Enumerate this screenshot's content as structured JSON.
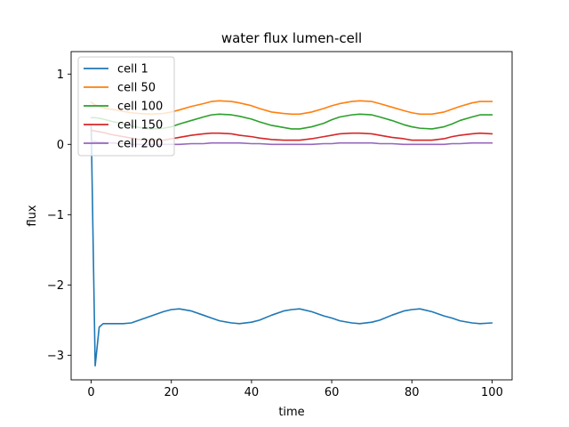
{
  "chart_data": {
    "type": "line",
    "title": "water flux lumen-cell",
    "xlabel": "time",
    "ylabel": "flux",
    "xlim": [
      -5,
      105
    ],
    "ylim": [
      -3.35,
      1.32
    ],
    "xticks": [
      0,
      20,
      40,
      60,
      80,
      100
    ],
    "xtick_labels": [
      "0",
      "20",
      "40",
      "60",
      "80",
      "100"
    ],
    "yticks": [
      -3,
      -2,
      -1,
      0,
      1
    ],
    "ytick_labels": [
      "−3",
      "−2",
      "−1",
      "0",
      "1"
    ],
    "grid": false,
    "legend_position": "upper-left",
    "x": [
      0,
      1,
      2,
      3,
      5,
      8,
      10,
      12,
      15,
      18,
      20,
      22,
      25,
      28,
      30,
      32,
      35,
      37,
      40,
      42,
      45,
      48,
      50,
      52,
      55,
      58,
      60,
      62,
      65,
      67,
      70,
      72,
      75,
      78,
      80,
      82,
      85,
      88,
      90,
      92,
      95,
      97,
      100
    ],
    "series": [
      {
        "name": "cell 1",
        "color": "#1f77b4",
        "values": [
          0.28,
          -3.15,
          -2.6,
          -2.55,
          -2.55,
          -2.55,
          -2.54,
          -2.5,
          -2.44,
          -2.38,
          -2.35,
          -2.34,
          -2.37,
          -2.43,
          -2.47,
          -2.51,
          -2.54,
          -2.55,
          -2.53,
          -2.5,
          -2.43,
          -2.37,
          -2.35,
          -2.34,
          -2.38,
          -2.44,
          -2.47,
          -2.51,
          -2.54,
          -2.55,
          -2.53,
          -2.5,
          -2.43,
          -2.37,
          -2.35,
          -2.34,
          -2.38,
          -2.44,
          -2.47,
          -2.51,
          -2.54,
          -2.55,
          -2.54
        ]
      },
      {
        "name": "cell 50",
        "color": "#ff7f0e",
        "values": [
          0.6,
          0.56,
          0.54,
          0.52,
          0.5,
          0.47,
          0.45,
          0.44,
          0.43,
          0.44,
          0.46,
          0.49,
          0.54,
          0.58,
          0.61,
          0.62,
          0.61,
          0.59,
          0.55,
          0.51,
          0.46,
          0.44,
          0.43,
          0.43,
          0.46,
          0.51,
          0.55,
          0.58,
          0.61,
          0.62,
          0.61,
          0.58,
          0.53,
          0.48,
          0.45,
          0.43,
          0.43,
          0.46,
          0.5,
          0.54,
          0.59,
          0.61,
          0.61
        ]
      },
      {
        "name": "cell 100",
        "color": "#2ca02c",
        "values": [
          0.38,
          0.38,
          0.37,
          0.36,
          0.33,
          0.29,
          0.26,
          0.24,
          0.22,
          0.23,
          0.25,
          0.29,
          0.34,
          0.39,
          0.42,
          0.43,
          0.42,
          0.4,
          0.36,
          0.32,
          0.27,
          0.24,
          0.22,
          0.22,
          0.25,
          0.3,
          0.35,
          0.39,
          0.42,
          0.43,
          0.42,
          0.39,
          0.34,
          0.28,
          0.25,
          0.23,
          0.22,
          0.25,
          0.29,
          0.34,
          0.39,
          0.42,
          0.42
        ]
      },
      {
        "name": "cell 150",
        "color": "#d62728",
        "values": [
          0.2,
          0.19,
          0.18,
          0.17,
          0.14,
          0.11,
          0.09,
          0.07,
          0.06,
          0.06,
          0.08,
          0.1,
          0.13,
          0.15,
          0.16,
          0.16,
          0.15,
          0.13,
          0.11,
          0.09,
          0.07,
          0.06,
          0.06,
          0.06,
          0.08,
          0.11,
          0.13,
          0.15,
          0.16,
          0.16,
          0.15,
          0.13,
          0.1,
          0.08,
          0.06,
          0.06,
          0.06,
          0.08,
          0.11,
          0.13,
          0.15,
          0.16,
          0.15
        ]
      },
      {
        "name": "cell 200",
        "color": "#9467bd",
        "values": [
          0.04,
          0.04,
          0.03,
          0.03,
          0.02,
          0.01,
          0.0,
          0.0,
          0.0,
          0.0,
          0.0,
          0.0,
          0.01,
          0.01,
          0.02,
          0.02,
          0.02,
          0.02,
          0.01,
          0.01,
          0.0,
          0.0,
          0.0,
          0.0,
          0.0,
          0.01,
          0.01,
          0.02,
          0.02,
          0.02,
          0.02,
          0.01,
          0.01,
          0.0,
          0.0,
          0.0,
          0.0,
          0.0,
          0.01,
          0.01,
          0.02,
          0.02,
          0.02
        ]
      }
    ]
  }
}
